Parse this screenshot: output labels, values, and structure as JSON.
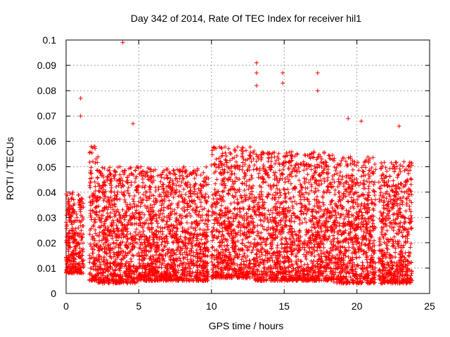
{
  "chart_data": {
    "type": "scatter",
    "title": "Day 342 of 2014, Rate Of TEC Index for receiver hil1",
    "xlabel": "GPS time / hours",
    "ylabel": "ROTI / TECUs",
    "xlim": [
      0,
      25
    ],
    "ylim": [
      0,
      0.1
    ],
    "xticks": [
      "0",
      "5",
      "10",
      "15",
      "20",
      "25"
    ],
    "yticks": [
      "0",
      "0.01",
      "0.02",
      "0.03",
      "0.04",
      "0.05",
      "0.06",
      "0.07",
      "0.08",
      "0.09",
      "0.1"
    ],
    "grid": true,
    "marker": "+",
    "color": "#ff0000",
    "series": [
      {
        "name": "ROTI",
        "description": "Dense red '+' markers over 0–23.8 h, mostly between 0.005 and 0.05 TECU with sparse spikes",
        "notable_points": [
          {
            "x": 1.0,
            "y": 0.077
          },
          {
            "x": 1.0,
            "y": 0.07
          },
          {
            "x": 3.9,
            "y": 0.099
          },
          {
            "x": 4.6,
            "y": 0.067
          },
          {
            "x": 13.1,
            "y": 0.091
          },
          {
            "x": 13.1,
            "y": 0.087
          },
          {
            "x": 13.1,
            "y": 0.082
          },
          {
            "x": 14.9,
            "y": 0.087
          },
          {
            "x": 14.9,
            "y": 0.083
          },
          {
            "x": 17.3,
            "y": 0.087
          },
          {
            "x": 17.3,
            "y": 0.08
          },
          {
            "x": 19.4,
            "y": 0.069
          },
          {
            "x": 20.3,
            "y": 0.068
          },
          {
            "x": 22.9,
            "y": 0.066
          }
        ],
        "activity_bands": [
          {
            "x_start": 0.0,
            "x_end": 1.2,
            "y_low": 0.008,
            "y_high": 0.04
          },
          {
            "x_start": 1.6,
            "x_end": 2.2,
            "y_low": 0.005,
            "y_high": 0.058
          },
          {
            "x_start": 2.2,
            "x_end": 5.0,
            "y_low": 0.004,
            "y_high": 0.05
          },
          {
            "x_start": 5.0,
            "x_end": 9.8,
            "y_low": 0.005,
            "y_high": 0.05
          },
          {
            "x_start": 10.0,
            "x_end": 13.0,
            "y_low": 0.006,
            "y_high": 0.058
          },
          {
            "x_start": 13.0,
            "x_end": 18.4,
            "y_low": 0.005,
            "y_high": 0.056
          },
          {
            "x_start": 18.4,
            "x_end": 21.3,
            "y_low": 0.004,
            "y_high": 0.054
          },
          {
            "x_start": 21.5,
            "x_end": 23.8,
            "y_low": 0.004,
            "y_high": 0.052
          }
        ]
      }
    ]
  }
}
